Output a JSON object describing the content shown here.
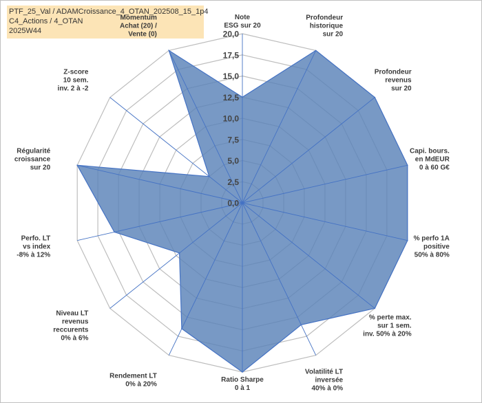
{
  "header": {
    "line1": "PTF_25_Val / ADAMCroissance_4_OTAN_202508_15_1p4",
    "line2": "C4_Actions / 4_OTAN",
    "line3": "2025W44"
  },
  "colors": {
    "fill": "#5a82b8",
    "outline": "#4472c4",
    "grid": "#bdbdbd",
    "spoke": "#4472c4",
    "title_bg": "#fce4b6"
  },
  "chart_data": {
    "type": "radar",
    "title": "",
    "rmin": 0,
    "rmax": 20,
    "ticks": [
      "0,0",
      "2,5",
      "5,0",
      "7,5",
      "10,0",
      "12,5",
      "15,0",
      "17,5",
      "20,0"
    ],
    "categories": [
      [
        "Note",
        "ESG sur 20"
      ],
      [
        "Profondeur",
        "historique",
        "sur 20"
      ],
      [
        "Profondeur",
        "revenus",
        "sur 20"
      ],
      [
        "Capi. bours.",
        "en MdEUR",
        "0 à 60 G€"
      ],
      [
        "% perfo 1A",
        "positive",
        "50% à 80%"
      ],
      [
        "% perte max.",
        "sur 1 sem.",
        "inv. 50% à 20%"
      ],
      [
        "Volatilité LT",
        "inversée",
        "40% à 0%"
      ],
      [
        "Ratio Sharpe",
        "0 à 1"
      ],
      [
        "Rendement LT",
        "0% à 20%"
      ],
      [
        "Niveau LT",
        "revenus",
        "reccurents",
        "0% à 6%"
      ],
      [
        "Perfo. LT",
        "vs index",
        "-8% à 12%"
      ],
      [
        "Régularité",
        "croissance",
        "sur 20"
      ],
      [
        "Z-score",
        "10 sem.",
        "inv. 2 à -2"
      ],
      [
        "Momentum",
        "Achat (20) /",
        "Vente (0)"
      ]
    ],
    "series": [
      {
        "name": "ADAMCroissance_4_OTAN",
        "values": [
          12.5,
          20,
          20,
          20,
          20,
          20,
          16,
          20,
          16.5,
          9.5,
          15.5,
          20,
          5,
          20
        ]
      }
    ]
  }
}
